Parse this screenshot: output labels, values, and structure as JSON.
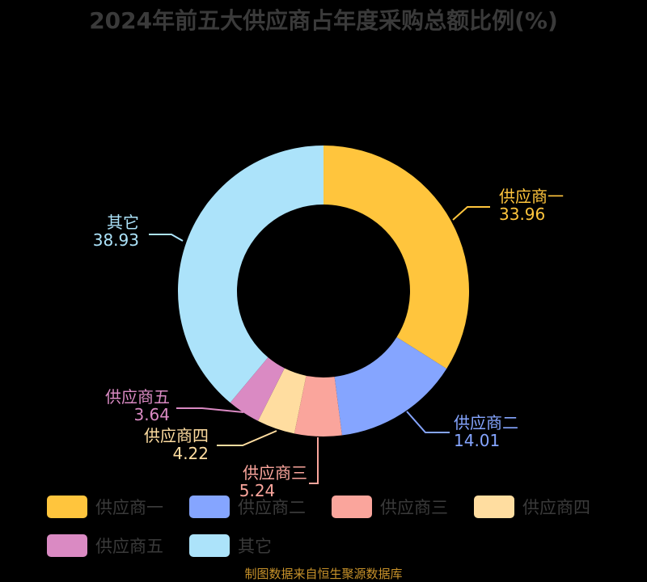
{
  "title": "2024年前五大供应商占年度采购总额比例(%)",
  "source": "制图数据来自恒生聚源数据库",
  "colors": {
    "supplier1": "#FFC53D",
    "supplier2": "#85A5FF",
    "supplier3": "#FAA59C",
    "supplier4": "#FFDDA0",
    "supplier5": "#DA8AC3",
    "other": "#ACE3FA",
    "background": "#000000",
    "title": "#3a3a3a",
    "source": "#c8922a"
  },
  "chart_data": {
    "type": "pie",
    "subtype": "donut",
    "title": "2024年前五大供应商占年度采购总额比例(%)",
    "categories": [
      "供应商一",
      "供应商二",
      "供应商三",
      "供应商四",
      "供应商五",
      "其它"
    ],
    "values": [
      33.96,
      14.01,
      5.24,
      4.22,
      3.64,
      38.93
    ],
    "colors": [
      "#FFC53D",
      "#85A5FF",
      "#FAA59C",
      "#FFDDA0",
      "#DA8AC3",
      "#ACE3FA"
    ],
    "legend_position": "bottom",
    "start_angle": "12 o'clock, clockwise"
  },
  "labels": [
    {
      "name": "供应商一",
      "value": "33.96"
    },
    {
      "name": "供应商二",
      "value": "14.01"
    },
    {
      "name": "供应商三",
      "value": "5.24"
    },
    {
      "name": "供应商四",
      "value": "4.22"
    },
    {
      "name": "供应商五",
      "value": "3.64"
    },
    {
      "name": "其它",
      "value": "38.93"
    }
  ],
  "legend": [
    {
      "label": "供应商一"
    },
    {
      "label": "供应商二"
    },
    {
      "label": "供应商三"
    },
    {
      "label": "供应商四"
    },
    {
      "label": "供应商五"
    },
    {
      "label": "其它"
    }
  ]
}
